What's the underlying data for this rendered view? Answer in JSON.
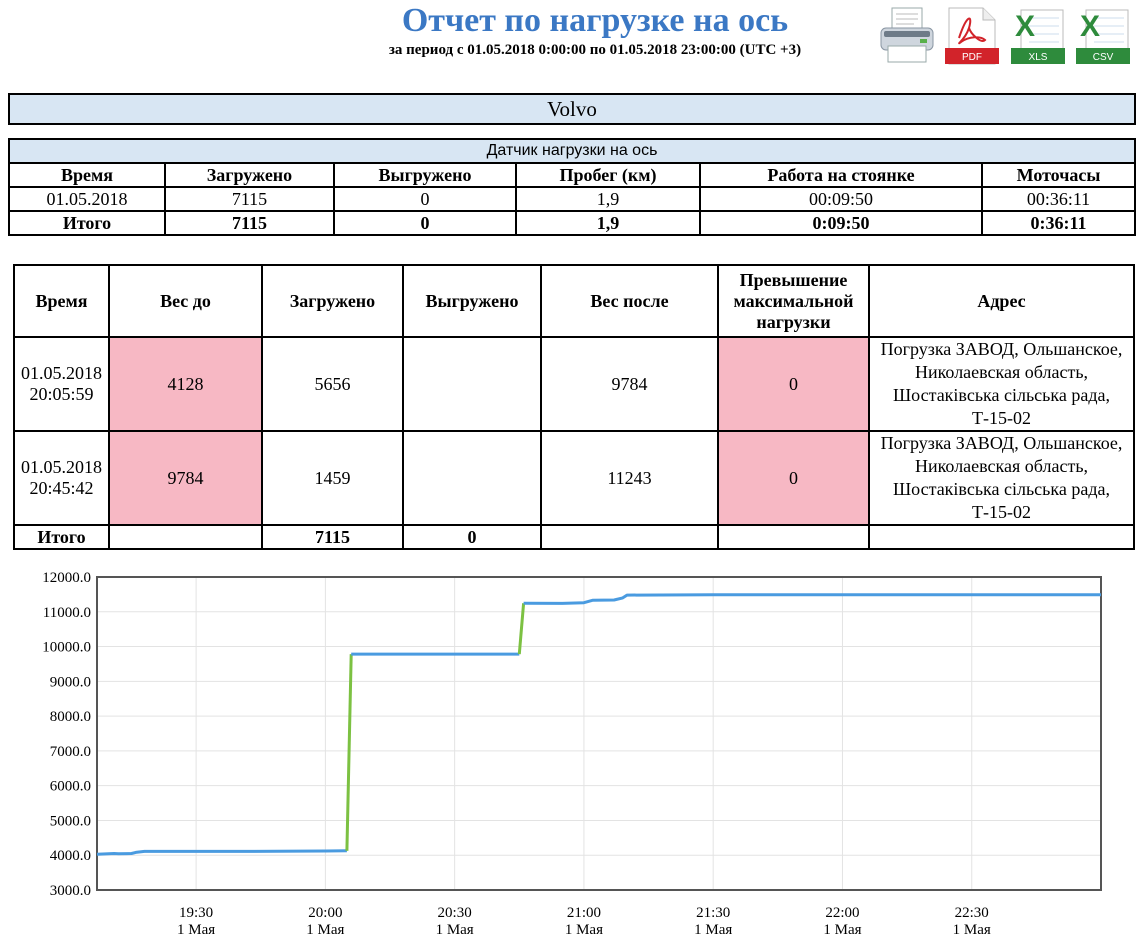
{
  "header": {
    "title": "Отчет по нагрузке на ось",
    "subtitle": "за период с 01.05.2018 0:00:00 по 01.05.2018 23:00:00 (UTC +3)"
  },
  "export": {
    "print_icon": "printer-icon",
    "pdf_label": "PDF",
    "xls_label": "XLS",
    "csv_label": "CSV",
    "xls_letter": "X",
    "csv_letter": "X"
  },
  "vehicle": "Volvo",
  "summary": {
    "caption": "Датчик нагрузки на ось",
    "headers": [
      "Время",
      "Загружено",
      "Выгружено",
      "Пробег (км)",
      "Работа на стоянке",
      "Моточасы"
    ],
    "rows": [
      [
        "01.05.2018",
        "7115",
        "0",
        "1,9",
        "00:09:50",
        "00:36:11"
      ]
    ],
    "total": [
      "Итого",
      "7115",
      "0",
      "1,9",
      "0:09:50",
      "0:36:11"
    ]
  },
  "events": {
    "headers": [
      "Время",
      "Вес до",
      "Загружено",
      "Выгружено",
      "Вес после",
      "Превышение максимальной нагрузки",
      "Адрес"
    ],
    "rows": [
      {
        "time_date": "01.05.2018",
        "time_clock": "20:05:59",
        "weight_before": "4128",
        "loaded": "5656",
        "unloaded": "",
        "weight_after": "9784",
        "overload": "0",
        "address": "Погрузка ЗАВОД, Ольшанское, Николаевская область, Шостаківська сільська рада, Т-15-02"
      },
      {
        "time_date": "01.05.2018",
        "time_clock": "20:45:42",
        "weight_before": "9784",
        "loaded": "1459",
        "unloaded": "",
        "weight_after": "11243",
        "overload": "0",
        "address": "Погрузка ЗАВОД, Ольшанское, Николаевская область, Шостаківська сільська рада, Т-15-02"
      }
    ],
    "total": {
      "label": "Итого",
      "loaded": "7115",
      "unloaded": "0"
    }
  },
  "colors": {
    "title": "#3b78c4",
    "highlight": "#f7b8c4",
    "header_bg": "#d8e6f3",
    "line_main": "#4a9be0",
    "line_loading": "#7cc142"
  },
  "chart_data": {
    "type": "line",
    "ylim": [
      3000,
      12000
    ],
    "y_ticks": [
      "12000.0",
      "11000.0",
      "10000.0",
      "9000.0",
      "8000.0",
      "7000.0",
      "6000.0",
      "5000.0",
      "4000.0",
      "3000.0"
    ],
    "x_ticks": [
      {
        "time": "19:30",
        "date": "1 Мая"
      },
      {
        "time": "20:00",
        "date": "1 Мая"
      },
      {
        "time": "20:30",
        "date": "1 Мая"
      },
      {
        "time": "21:00",
        "date": "1 Мая"
      },
      {
        "time": "21:30",
        "date": "1 Мая"
      },
      {
        "time": "22:00",
        "date": "1 Мая"
      },
      {
        "time": "22:30",
        "date": "1 Мая"
      }
    ],
    "x_range": [
      "19:07",
      "23:00"
    ],
    "grid": true,
    "series": [
      {
        "segments": [
          {
            "color": "#4a9be0",
            "points": [
              [
                "19:07",
                4030
              ],
              [
                "19:11",
                4050
              ],
              [
                "19:12",
                4040
              ],
              [
                "19:15",
                4050
              ],
              [
                "19:16",
                4080
              ],
              [
                "19:18",
                4110
              ],
              [
                "19:40",
                4110
              ],
              [
                "20:00",
                4120
              ],
              [
                "20:05",
                4128
              ]
            ]
          },
          {
            "color": "#7cc142",
            "points": [
              [
                "20:05",
                4128
              ],
              [
                "20:06",
                9784
              ]
            ]
          },
          {
            "color": "#4a9be0",
            "points": [
              [
                "20:06",
                9784
              ],
              [
                "20:45",
                9784
              ]
            ]
          },
          {
            "color": "#7cc142",
            "points": [
              [
                "20:45",
                9784
              ],
              [
                "20:46",
                11243
              ]
            ]
          },
          {
            "color": "#4a9be0",
            "points": [
              [
                "20:46",
                11243
              ],
              [
                "20:55",
                11240
              ],
              [
                "21:00",
                11260
              ],
              [
                "21:02",
                11330
              ],
              [
                "21:07",
                11340
              ],
              [
                "21:09",
                11400
              ],
              [
                "21:10",
                11480
              ],
              [
                "21:30",
                11490
              ],
              [
                "22:00",
                11490
              ],
              [
                "23:00",
                11490
              ]
            ]
          }
        ]
      }
    ]
  }
}
